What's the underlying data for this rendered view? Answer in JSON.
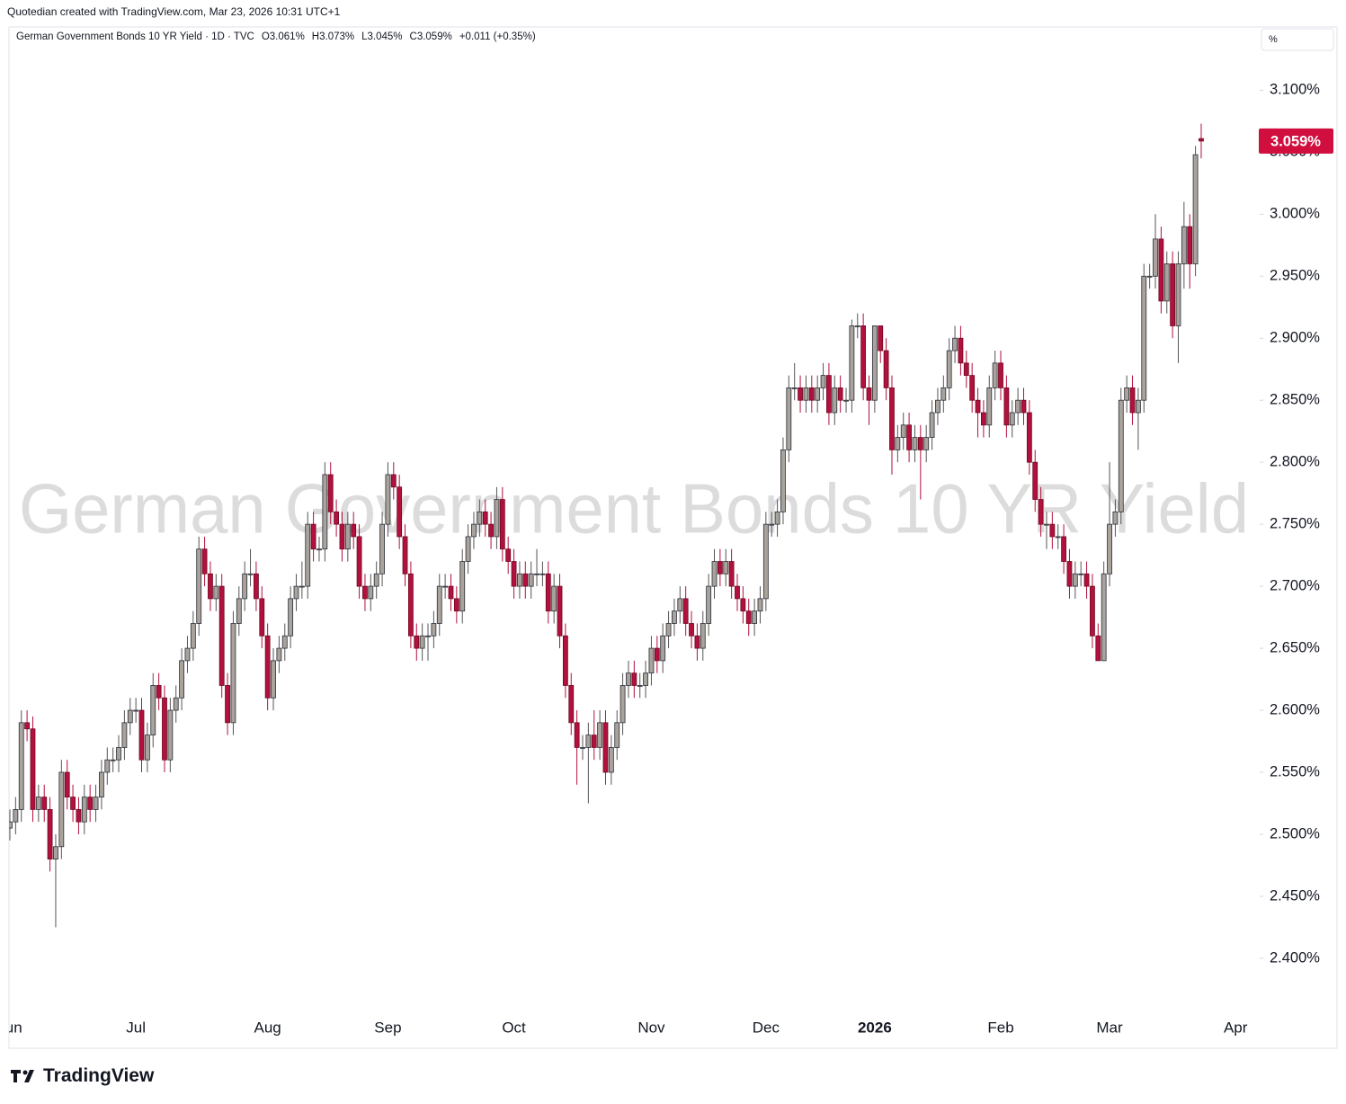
{
  "chart_data": {
    "type": "candlestick",
    "credit": "Quotedian created with TradingView.com, Mar 23, 2026 10:31 UTC+1",
    "title": "German Government Bonds 10 YR Yield · 1D · TVC",
    "ohlc_legend": [
      "O3.061%",
      "H3.073%",
      "L3.045%",
      "C3.059%",
      "+0.011 (+0.35%)"
    ],
    "watermark": "German Government Bonds 10 YR Yield",
    "unit_label": "%",
    "last_label": "3.059%",
    "brand": "TradingView",
    "up_color": "#a9a39c",
    "down_color": "#b2103d",
    "ylim": [
      2.355,
      3.151
    ],
    "yticks": [
      {
        "value": 2.4,
        "label": "2.400%"
      },
      {
        "value": 2.45,
        "label": "2.450%"
      },
      {
        "value": 2.5,
        "label": "2.500%"
      },
      {
        "value": 2.55,
        "label": "2.550%"
      },
      {
        "value": 2.6,
        "label": "2.600%"
      },
      {
        "value": 2.65,
        "label": "2.650%"
      },
      {
        "value": 2.7,
        "label": "2.700%"
      },
      {
        "value": 2.75,
        "label": "2.750%"
      },
      {
        "value": 2.8,
        "label": "2.800%"
      },
      {
        "value": 2.85,
        "label": "2.850%"
      },
      {
        "value": 2.9,
        "label": "2.900%"
      },
      {
        "value": 2.95,
        "label": "2.950%"
      },
      {
        "value": 3.0,
        "label": "3.000%"
      },
      {
        "value": 3.05,
        "label": "3.050%"
      },
      {
        "value": 3.1,
        "label": "3.100%"
      }
    ],
    "categories": [
      "Jun",
      null,
      null,
      null,
      null,
      null,
      null,
      null,
      null,
      null,
      null,
      null,
      null,
      null,
      null,
      null,
      null,
      null,
      null,
      null,
      null,
      null,
      "Jul",
      null,
      null,
      null,
      null,
      null,
      null,
      null,
      null,
      null,
      null,
      null,
      null,
      null,
      null,
      null,
      null,
      null,
      null,
      null,
      null,
      null,
      null,
      "Aug",
      null,
      null,
      null,
      null,
      null,
      null,
      null,
      null,
      null,
      null,
      null,
      null,
      null,
      null,
      null,
      null,
      null,
      null,
      null,
      null,
      "Sep",
      null,
      null,
      null,
      null,
      null,
      null,
      null,
      null,
      null,
      null,
      null,
      null,
      null,
      null,
      null,
      null,
      null,
      null,
      null,
      null,
      null,
      "Oct",
      null,
      null,
      null,
      null,
      null,
      null,
      null,
      null,
      null,
      null,
      null,
      null,
      null,
      null,
      null,
      null,
      null,
      null,
      null,
      null,
      null,
      null,
      null,
      "Nov",
      null,
      null,
      null,
      null,
      null,
      null,
      null,
      null,
      null,
      null,
      null,
      null,
      null,
      null,
      null,
      null,
      null,
      null,
      null,
      "Dec",
      null,
      null,
      null,
      null,
      null,
      null,
      null,
      null,
      null,
      null,
      null,
      null,
      null,
      null,
      null,
      null,
      null,
      null,
      "2026",
      null,
      null,
      null,
      null,
      null,
      null,
      null,
      null,
      null,
      null,
      null,
      null,
      null,
      null,
      null,
      null,
      null,
      null,
      null,
      null,
      null,
      "Feb",
      null,
      null,
      null,
      null,
      null,
      null,
      null,
      null,
      null,
      null,
      null,
      null,
      null,
      null,
      null,
      null,
      null,
      null,
      "Mar",
      null,
      null,
      null,
      null,
      null,
      null,
      null,
      null,
      null,
      null,
      null,
      null,
      null,
      null,
      null,
      null,
      null,
      null,
      null,
      null,
      null,
      "Apr"
    ],
    "open": [
      2.505,
      2.51,
      2.52,
      2.59,
      2.585,
      2.52,
      2.53,
      2.52,
      2.48,
      2.49,
      2.55,
      2.53,
      2.52,
      2.51,
      2.53,
      2.52,
      2.53,
      2.55,
      2.56,
      2.56,
      2.57,
      2.59,
      2.6,
      2.6,
      2.56,
      2.58,
      2.62,
      2.61,
      2.56,
      2.6,
      2.61,
      2.64,
      2.65,
      2.67,
      2.73,
      2.71,
      2.69,
      2.7,
      2.62,
      2.59,
      2.67,
      2.69,
      2.71,
      2.71,
      2.69,
      2.66,
      2.61,
      2.64,
      2.65,
      2.66,
      2.69,
      2.7,
      2.7,
      2.75,
      2.73,
      2.73,
      2.79,
      2.76,
      2.75,
      2.73,
      2.75,
      2.74,
      2.7,
      2.69,
      2.7,
      2.71,
      2.75,
      2.79,
      2.78,
      2.74,
      2.71,
      2.66,
      2.65,
      2.66,
      2.66,
      2.67,
      2.7,
      2.7,
      2.69,
      2.68,
      2.72,
      2.74,
      2.75,
      2.76,
      2.75,
      2.74,
      2.77,
      2.73,
      2.72,
      2.7,
      2.71,
      2.7,
      2.71,
      2.71,
      2.71,
      2.68,
      2.7,
      2.66,
      2.62,
      2.59,
      2.57,
      2.57,
      2.58,
      2.57,
      2.59,
      2.55,
      2.57,
      2.59,
      2.62,
      2.63,
      2.62,
      2.62,
      2.63,
      2.65,
      2.64,
      2.66,
      2.67,
      2.68,
      2.69,
      2.67,
      2.66,
      2.65,
      2.67,
      2.7,
      2.72,
      2.71,
      2.72,
      2.7,
      2.69,
      2.68,
      2.67,
      2.68,
      2.69,
      2.75,
      2.75,
      2.76,
      2.81,
      2.86,
      2.86,
      2.85,
      2.86,
      2.85,
      2.86,
      2.87,
      2.84,
      2.86,
      2.85,
      2.85,
      2.91,
      2.91,
      2.86,
      2.85,
      2.91,
      2.89,
      2.86,
      2.81,
      2.82,
      2.83,
      2.81,
      2.82,
      2.81,
      2.82,
      2.84,
      2.85,
      2.86,
      2.89,
      2.9,
      2.88,
      2.87,
      2.85,
      2.84,
      2.83,
      2.86,
      2.88,
      2.86,
      2.83,
      2.84,
      2.85,
      2.84,
      2.8,
      2.77,
      2.75,
      2.75,
      2.74,
      2.74,
      2.72,
      2.7,
      2.71,
      2.71,
      2.7,
      2.66,
      2.64,
      2.71,
      2.75,
      2.76,
      2.85,
      2.86,
      2.84,
      2.85,
      2.95,
      2.95,
      2.98,
      2.93,
      2.96,
      2.91,
      2.96,
      2.99,
      2.96,
      3.061,
      null,
      null,
      null,
      null,
      null,
      null
    ],
    "high": [
      2.52,
      2.53,
      2.6,
      2.6,
      2.595,
      2.54,
      2.54,
      2.53,
      2.5,
      2.56,
      2.56,
      2.54,
      2.53,
      2.54,
      2.54,
      2.54,
      2.56,
      2.57,
      2.57,
      2.58,
      2.6,
      2.61,
      2.61,
      2.61,
      2.59,
      2.63,
      2.63,
      2.62,
      2.61,
      2.62,
      2.65,
      2.66,
      2.68,
      2.74,
      2.74,
      2.72,
      2.71,
      2.71,
      2.63,
      2.68,
      2.7,
      2.72,
      2.73,
      2.72,
      2.7,
      2.67,
      2.65,
      2.66,
      2.67,
      2.7,
      2.71,
      2.72,
      2.76,
      2.76,
      2.74,
      2.8,
      2.8,
      2.77,
      2.76,
      2.76,
      2.76,
      2.75,
      2.71,
      2.71,
      2.72,
      2.76,
      2.8,
      2.8,
      2.79,
      2.75,
      2.72,
      2.67,
      2.67,
      2.67,
      2.68,
      2.71,
      2.71,
      2.71,
      2.7,
      2.73,
      2.75,
      2.76,
      2.77,
      2.77,
      2.76,
      2.78,
      2.78,
      2.74,
      2.73,
      2.72,
      2.72,
      2.72,
      2.73,
      2.72,
      2.72,
      2.71,
      2.71,
      2.67,
      2.63,
      2.6,
      2.58,
      2.59,
      2.6,
      2.6,
      2.6,
      2.58,
      2.6,
      2.63,
      2.64,
      2.64,
      2.63,
      2.64,
      2.66,
      2.66,
      2.67,
      2.68,
      2.69,
      2.7,
      2.7,
      2.68,
      2.67,
      2.68,
      2.71,
      2.73,
      2.73,
      2.73,
      2.73,
      2.71,
      2.7,
      2.69,
      2.69,
      2.7,
      2.76,
      2.76,
      2.77,
      2.82,
      2.87,
      2.88,
      2.87,
      2.87,
      2.87,
      2.87,
      2.88,
      2.88,
      2.87,
      2.87,
      2.86,
      2.915,
      2.92,
      2.92,
      2.87,
      2.91,
      2.91,
      2.9,
      2.87,
      2.83,
      2.84,
      2.84,
      2.83,
      2.83,
      2.83,
      2.85,
      2.86,
      2.87,
      2.9,
      2.91,
      2.91,
      2.89,
      2.88,
      2.86,
      2.85,
      2.87,
      2.89,
      2.89,
      2.87,
      2.85,
      2.86,
      2.86,
      2.85,
      2.81,
      2.78,
      2.76,
      2.76,
      2.75,
      2.75,
      2.73,
      2.72,
      2.72,
      2.72,
      2.71,
      2.67,
      2.72,
      2.8,
      2.77,
      2.86,
      2.87,
      2.87,
      2.86,
      2.96,
      2.96,
      3.0,
      2.99,
      2.97,
      2.97,
      2.97,
      3.01,
      3.0,
      3.055,
      3.073,
      null,
      null,
      null,
      null,
      null,
      null
    ],
    "low": [
      2.495,
      2.5,
      2.51,
      2.575,
      2.51,
      2.51,
      2.51,
      2.47,
      2.425,
      2.48,
      2.52,
      2.51,
      2.5,
      2.5,
      2.51,
      2.51,
      2.52,
      2.54,
      2.55,
      2.55,
      2.56,
      2.58,
      2.59,
      2.55,
      2.55,
      2.57,
      2.6,
      2.55,
      2.55,
      2.59,
      2.6,
      2.63,
      2.64,
      2.66,
      2.7,
      2.68,
      2.68,
      2.61,
      2.58,
      2.58,
      2.66,
      2.68,
      2.7,
      2.68,
      2.65,
      2.6,
      2.6,
      2.63,
      2.64,
      2.65,
      2.68,
      2.69,
      2.69,
      2.72,
      2.72,
      2.72,
      2.75,
      2.74,
      2.72,
      2.72,
      2.73,
      2.69,
      2.68,
      2.68,
      2.69,
      2.7,
      2.74,
      2.77,
      2.73,
      2.7,
      2.65,
      2.64,
      2.64,
      2.64,
      2.65,
      2.66,
      2.69,
      2.68,
      2.67,
      2.67,
      2.71,
      2.73,
      2.74,
      2.74,
      2.73,
      2.73,
      2.72,
      2.71,
      2.69,
      2.69,
      2.69,
      2.69,
      2.7,
      2.7,
      2.67,
      2.67,
      2.65,
      2.61,
      2.58,
      2.54,
      2.56,
      2.525,
      2.56,
      2.56,
      2.54,
      2.54,
      2.56,
      2.58,
      2.61,
      2.61,
      2.61,
      2.61,
      2.62,
      2.63,
      2.63,
      2.65,
      2.66,
      2.67,
      2.66,
      2.65,
      2.64,
      2.64,
      2.66,
      2.69,
      2.7,
      2.7,
      2.69,
      2.68,
      2.67,
      2.66,
      2.66,
      2.67,
      2.68,
      2.74,
      2.74,
      2.75,
      2.8,
      2.85,
      2.84,
      2.84,
      2.84,
      2.84,
      2.85,
      2.83,
      2.83,
      2.84,
      2.84,
      2.84,
      2.9,
      2.85,
      2.83,
      2.84,
      2.88,
      2.85,
      2.79,
      2.8,
      2.81,
      2.8,
      2.8,
      2.77,
      2.8,
      2.81,
      2.83,
      2.84,
      2.85,
      2.88,
      2.87,
      2.86,
      2.84,
      2.82,
      2.82,
      2.82,
      2.85,
      2.85,
      2.82,
      2.82,
      2.83,
      2.83,
      2.79,
      2.76,
      2.74,
      2.73,
      2.73,
      2.73,
      2.71,
      2.69,
      2.69,
      2.7,
      2.69,
      2.65,
      2.64,
      2.64,
      2.7,
      2.74,
      2.75,
      2.84,
      2.83,
      2.81,
      2.84,
      2.94,
      2.94,
      2.92,
      2.92,
      2.9,
      2.88,
      2.94,
      2.94,
      2.95,
      3.045,
      null,
      null,
      null,
      null,
      null,
      null
    ],
    "close": [
      2.51,
      2.52,
      2.59,
      2.585,
      2.52,
      2.53,
      2.52,
      2.48,
      2.49,
      2.55,
      2.53,
      2.52,
      2.51,
      2.53,
      2.52,
      2.53,
      2.55,
      2.56,
      2.56,
      2.57,
      2.59,
      2.6,
      2.6,
      2.56,
      2.58,
      2.62,
      2.61,
      2.56,
      2.6,
      2.61,
      2.64,
      2.65,
      2.67,
      2.73,
      2.71,
      2.69,
      2.7,
      2.62,
      2.59,
      2.67,
      2.69,
      2.71,
      2.71,
      2.69,
      2.66,
      2.61,
      2.64,
      2.65,
      2.66,
      2.69,
      2.7,
      2.7,
      2.75,
      2.73,
      2.73,
      2.79,
      2.76,
      2.75,
      2.73,
      2.75,
      2.74,
      2.7,
      2.69,
      2.7,
      2.71,
      2.75,
      2.79,
      2.78,
      2.74,
      2.71,
      2.66,
      2.65,
      2.66,
      2.66,
      2.67,
      2.7,
      2.7,
      2.69,
      2.68,
      2.72,
      2.74,
      2.75,
      2.76,
      2.75,
      2.74,
      2.77,
      2.73,
      2.72,
      2.7,
      2.71,
      2.7,
      2.71,
      2.71,
      2.71,
      2.68,
      2.7,
      2.66,
      2.62,
      2.59,
      2.57,
      2.57,
      2.58,
      2.57,
      2.59,
      2.55,
      2.57,
      2.59,
      2.62,
      2.63,
      2.62,
      2.62,
      2.63,
      2.65,
      2.64,
      2.66,
      2.67,
      2.68,
      2.69,
      2.67,
      2.66,
      2.65,
      2.67,
      2.7,
      2.72,
      2.71,
      2.72,
      2.7,
      2.69,
      2.68,
      2.67,
      2.68,
      2.69,
      2.75,
      2.75,
      2.76,
      2.81,
      2.86,
      2.86,
      2.85,
      2.86,
      2.85,
      2.86,
      2.87,
      2.84,
      2.86,
      2.85,
      2.85,
      2.91,
      2.91,
      2.86,
      2.85,
      2.91,
      2.89,
      2.86,
      2.81,
      2.82,
      2.83,
      2.81,
      2.82,
      2.81,
      2.82,
      2.84,
      2.85,
      2.86,
      2.89,
      2.9,
      2.88,
      2.87,
      2.85,
      2.84,
      2.83,
      2.86,
      2.88,
      2.86,
      2.83,
      2.84,
      2.85,
      2.84,
      2.8,
      2.77,
      2.75,
      2.75,
      2.74,
      2.74,
      2.72,
      2.7,
      2.71,
      2.71,
      2.7,
      2.66,
      2.64,
      2.71,
      2.75,
      2.76,
      2.85,
      2.86,
      2.84,
      2.85,
      2.95,
      2.95,
      2.98,
      2.93,
      2.96,
      2.91,
      2.96,
      2.99,
      2.96,
      3.048,
      3.059,
      null,
      null,
      null,
      null,
      null,
      null
    ]
  }
}
